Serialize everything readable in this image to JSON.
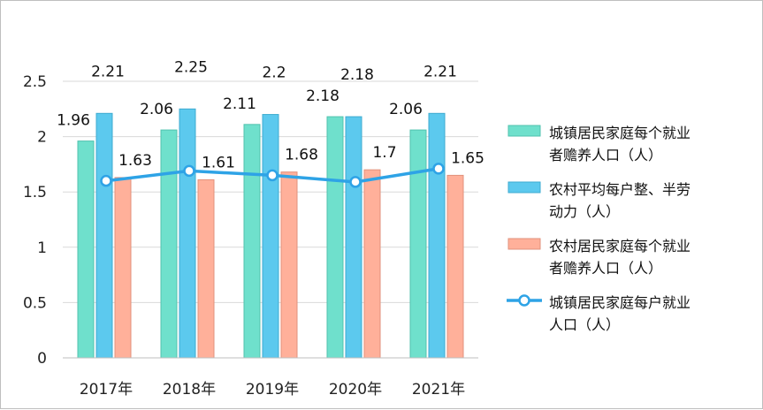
{
  "chart_data": {
    "type": "bar",
    "categories": [
      "2017年",
      "2018年",
      "2019年",
      "2020年",
      "2021年"
    ],
    "ylim": [
      0,
      2.5
    ],
    "yticks": [
      "0",
      "0.5",
      "1",
      "1.5",
      "2",
      "2.5"
    ],
    "grid": true,
    "legend_position": "right",
    "series": [
      {
        "name": "城镇居民家庭每个就业者赡养人口（人）",
        "name_lines": [
          "城镇居民家庭每个就业",
          "者赡养人口（人）"
        ],
        "kind": "bar",
        "color": "#6fe0cc",
        "values": [
          1.96,
          2.06,
          2.11,
          2.18,
          2.06
        ],
        "labels": [
          "1.96",
          "2.06",
          "2.11",
          "2.18",
          "2.06"
        ]
      },
      {
        "name": "农村平均每户整、半劳动力（人）",
        "name_lines": [
          "农村平均每户整、半劳",
          "动力（人）"
        ],
        "kind": "bar",
        "color": "#5cc9ee",
        "values": [
          2.21,
          2.25,
          2.2,
          2.18,
          2.21
        ],
        "labels": [
          "2.21",
          "2.25",
          "2.2",
          "2.18",
          "2.21"
        ]
      },
      {
        "name": "农村居民家庭每个就业者赡养人口（人）",
        "name_lines": [
          "农村居民家庭每个就业",
          "者赡养人口（人）"
        ],
        "kind": "bar",
        "color": "#ffb09a",
        "values": [
          1.63,
          1.61,
          1.68,
          1.7,
          1.65
        ],
        "labels": [
          "1.63",
          "1.61",
          "1.68",
          "1.7",
          "1.65"
        ]
      },
      {
        "name": "城镇居民家庭每户就业人口（人）",
        "name_lines": [
          "城镇居民家庭每户就业",
          "人口（人）"
        ],
        "kind": "line",
        "color": "#2ea3e6",
        "values": [
          1.6,
          1.69,
          1.65,
          1.59,
          1.71
        ]
      }
    ]
  }
}
